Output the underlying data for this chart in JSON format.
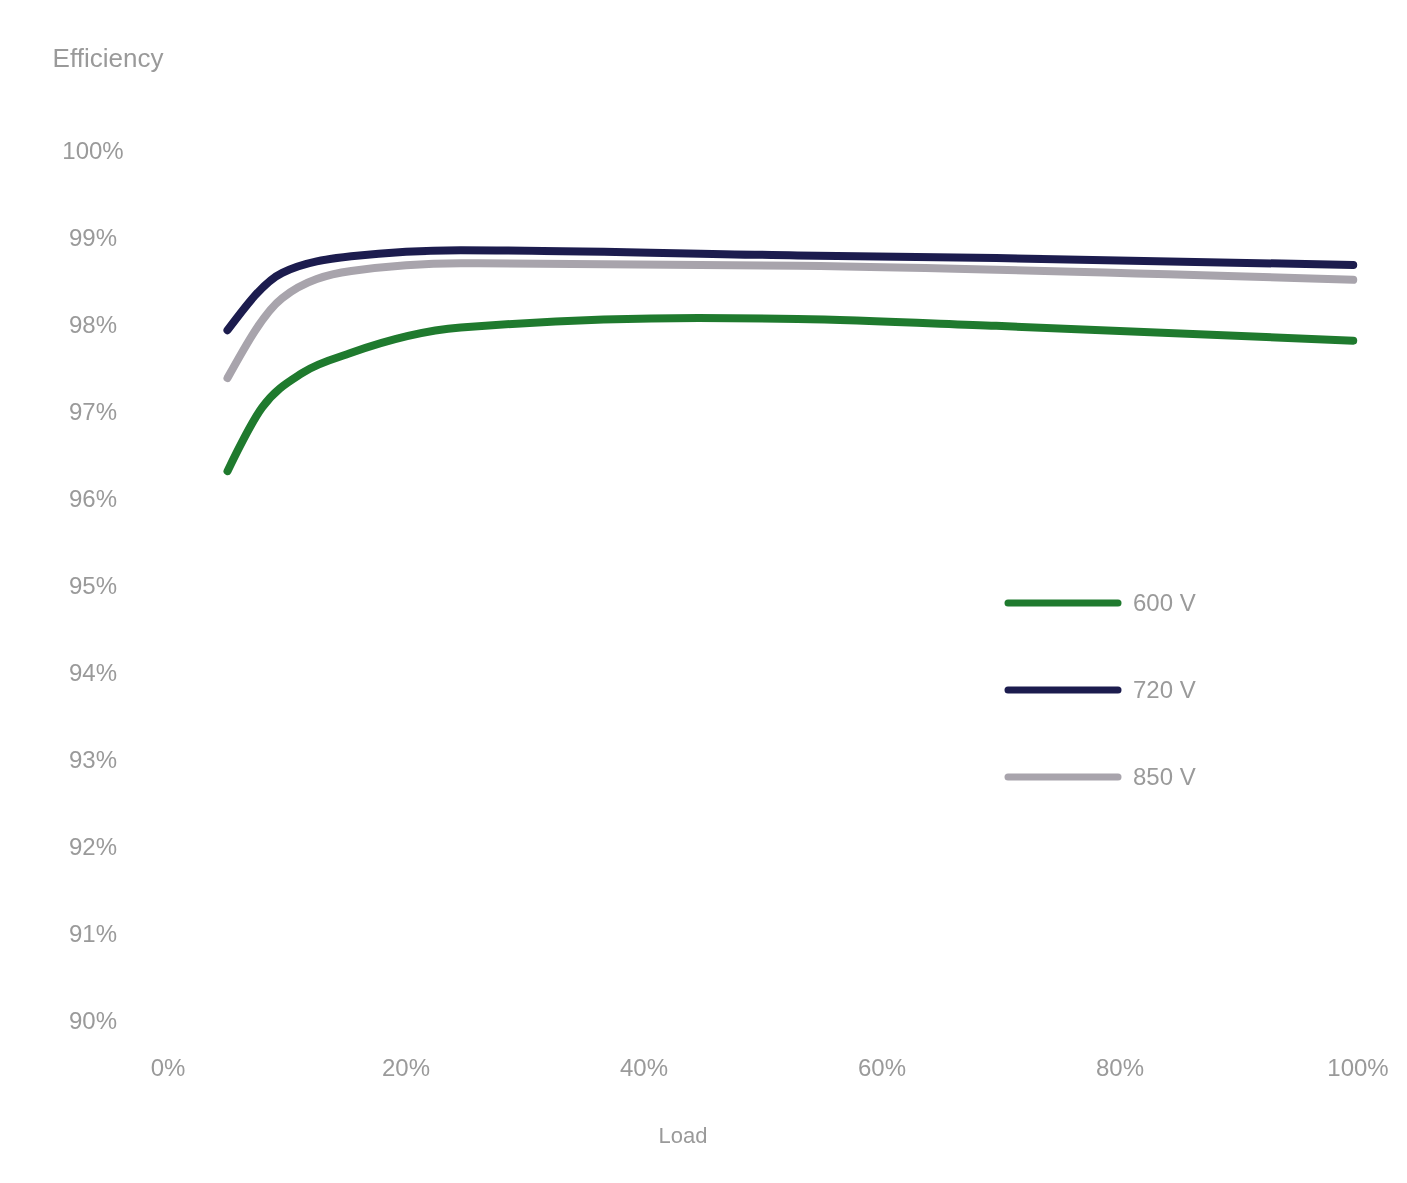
{
  "chart_data": {
    "type": "line",
    "ylabel": "Efficiency",
    "xlabel": "Load",
    "xlim": [
      0,
      100
    ],
    "ylim": [
      90,
      100
    ],
    "xticks": [
      {
        "value": 0,
        "label": "0%"
      },
      {
        "value": 20,
        "label": "20%"
      },
      {
        "value": 40,
        "label": "40%"
      },
      {
        "value": 60,
        "label": "60%"
      },
      {
        "value": 80,
        "label": "80%"
      },
      {
        "value": 100,
        "label": "100%"
      }
    ],
    "yticks": [
      {
        "value": 90,
        "label": "90%"
      },
      {
        "value": 91,
        "label": "91%"
      },
      {
        "value": 92,
        "label": "92%"
      },
      {
        "value": 93,
        "label": "93%"
      },
      {
        "value": 94,
        "label": "94%"
      },
      {
        "value": 95,
        "label": "95%"
      },
      {
        "value": 96,
        "label": "96%"
      },
      {
        "value": 97,
        "label": "97%"
      },
      {
        "value": 98,
        "label": "98%"
      },
      {
        "value": 99,
        "label": "99%"
      },
      {
        "value": 100,
        "label": "100%"
      }
    ],
    "grid": false,
    "legend": "right",
    "marker": "none",
    "line_style": "solid",
    "series": [
      {
        "name": "600 V",
        "color": "#1f7a2e",
        "x": [
          5,
          7.9,
          11.3,
          15.4,
          24.6,
          44.6,
          52.9,
          69.6,
          99.6
        ],
        "values": [
          96.32,
          97.05,
          97.45,
          97.68,
          97.97,
          98.08,
          98.07,
          97.99,
          97.82
        ]
      },
      {
        "name": "720 V",
        "color": "#1c1c4e",
        "x": [
          5,
          9.6,
          15.4,
          24.6,
          52.9,
          69.6,
          99.6
        ],
        "values": [
          97.94,
          98.6,
          98.79,
          98.86,
          98.8,
          98.77,
          98.69
        ]
      },
      {
        "name": "850 V",
        "color": "#a8a4ac",
        "x": [
          5,
          9.6,
          15.4,
          24.6,
          52.9,
          99.6
        ],
        "values": [
          97.39,
          98.31,
          98.62,
          98.71,
          98.68,
          98.52
        ]
      }
    ]
  }
}
